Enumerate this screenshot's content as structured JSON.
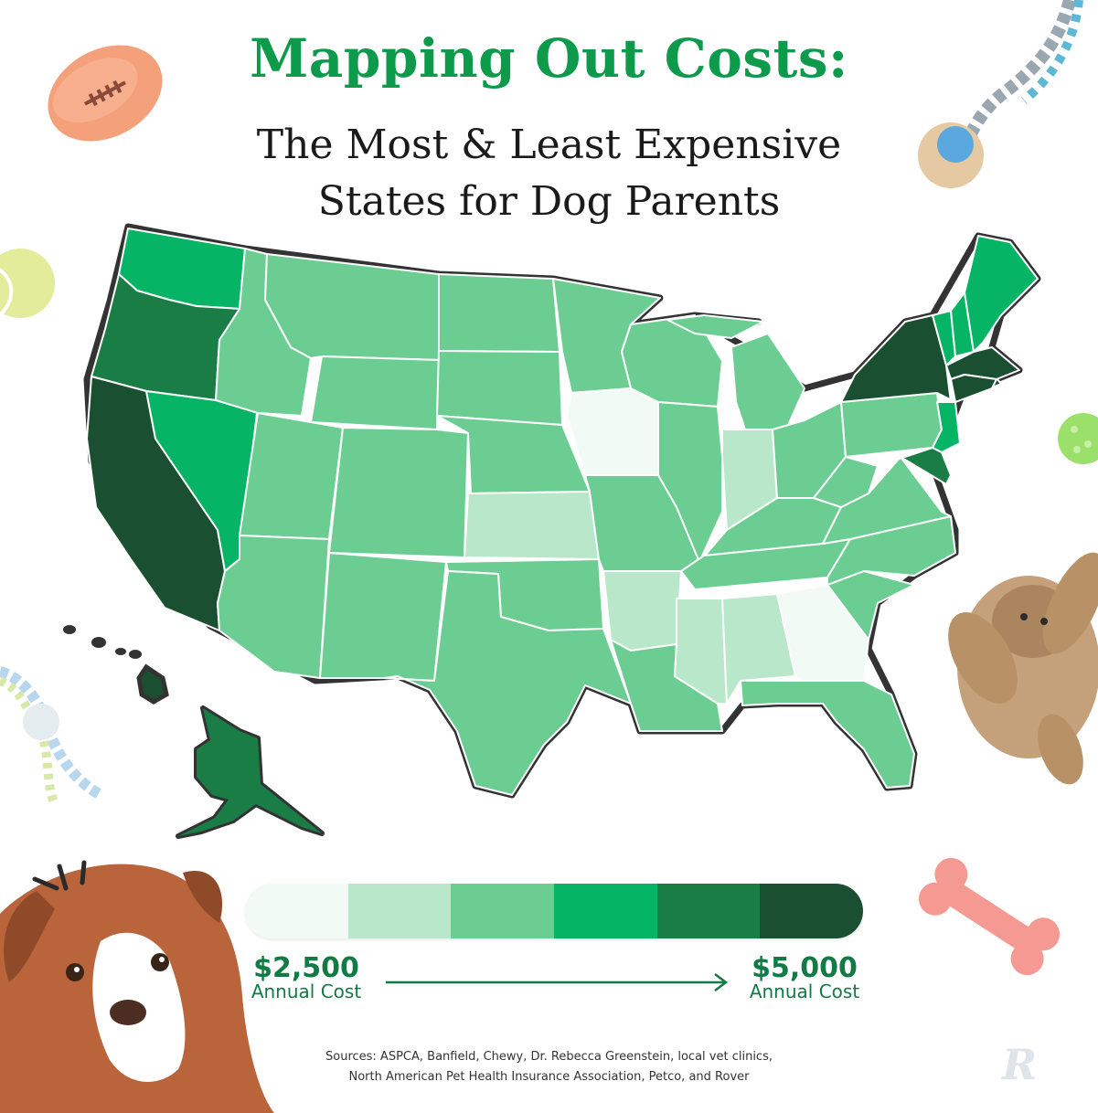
{
  "title": "Mapping Out Costs:",
  "subtitle_lines": [
    "The Most & Least Expensive",
    "States for Dog Parents"
  ],
  "legend": {
    "colors": [
      "#f1faf4",
      "#b9e7c9",
      "#6ccd93",
      "#05b464",
      "#1b7d46",
      "#1a5031"
    ],
    "min_amount": "$2,500",
    "min_label": "Annual Cost",
    "max_amount": "$5,000",
    "max_label": "Annual Cost"
  },
  "map_data": {
    "type": "choropleth",
    "region": "United States",
    "scale": "6 color classes from $2,500 to $5,000 annual cost",
    "states": {
      "WA": 4,
      "OR": 5,
      "CA": 6,
      "NV": 4,
      "ID": 3,
      "MT": 3,
      "WY": 3,
      "UT": 3,
      "AZ": 3,
      "CO": 3,
      "NM": 3,
      "ND": 3,
      "SD": 3,
      "NE": 3,
      "KS": 2,
      "OK": 3,
      "TX": 3,
      "MN": 3,
      "IA": 1,
      "MO": 3,
      "AR": 2,
      "LA": 3,
      "WI": 3,
      "IL": 3,
      "MI": 3,
      "IN": 2,
      "OH": 3,
      "KY": 3,
      "TN": 3,
      "MS": 2,
      "AL": 2,
      "GA": 1,
      "FL": 3,
      "SC": 3,
      "NC": 3,
      "VA": 3,
      "WV": 3,
      "PA": 3,
      "NY": 6,
      "NJ": 4,
      "MD": 5,
      "ME": 4,
      "NH": 4,
      "VT": 4,
      "MA": 6,
      "CT": 6,
      "AK": 5,
      "HI": 6
    }
  },
  "sources": [
    "Sources: ASPCA, Banfield, Chewy, Dr. Rebecca Greenstein, local vet clinics,",
    "North American Pet Health Insurance Association, Petco, and Rover"
  ],
  "logo_letter": "R"
}
